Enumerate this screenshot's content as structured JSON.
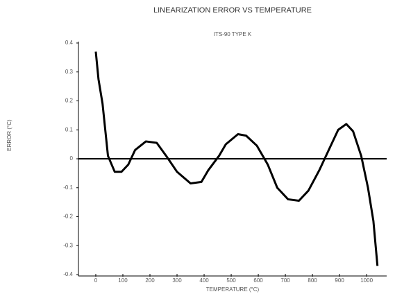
{
  "chart_data": {
    "type": "line",
    "title": "LINEARIZATION ERROR VS TEMPERATURE",
    "subtitle": "ITS-90 TYPE K",
    "ylabel": "ERROR (°C)",
    "xlabel": "TEMPERATURE (°C)",
    "x": [
      0,
      10,
      25,
      45,
      70,
      95,
      120,
      145,
      185,
      225,
      260,
      300,
      350,
      390,
      415,
      455,
      480,
      525,
      555,
      595,
      635,
      670,
      710,
      750,
      785,
      825,
      865,
      895,
      925,
      950,
      980,
      1005,
      1025,
      1040
    ],
    "series": [
      {
        "name": "error",
        "color": "#000000",
        "values": [
          0.37,
          0.275,
          0.19,
          0.01,
          -0.045,
          -0.045,
          -0.02,
          0.03,
          0.06,
          0.055,
          0.01,
          -0.045,
          -0.085,
          -0.08,
          -0.04,
          0.01,
          0.05,
          0.085,
          0.08,
          0.045,
          -0.02,
          -0.1,
          -0.14,
          -0.145,
          -0.11,
          -0.04,
          0.04,
          0.1,
          0.12,
          0.095,
          0.01,
          -0.1,
          -0.215,
          -0.37
        ]
      }
    ],
    "xlim": [
      -64,
      1074
    ],
    "xticks": [
      0,
      100,
      200,
      300,
      400,
      500,
      600,
      700,
      800,
      900,
      1000
    ],
    "ylim": [
      -0.4,
      0.4
    ],
    "yticks": [
      -0.4,
      -0.3,
      -0.2,
      -0.1,
      0,
      0.1,
      0.2,
      0.3,
      0.4
    ],
    "hline": 0,
    "grid": false
  }
}
